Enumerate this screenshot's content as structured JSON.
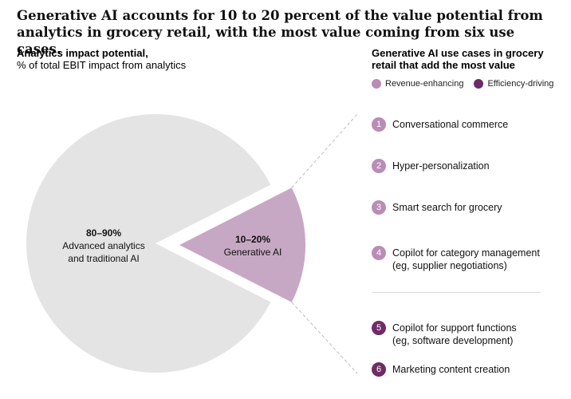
{
  "title": "Generative AI accounts for 10 to 20 percent of the value potential from analytics in grocery retail, with the most value coming from six use cases.",
  "chart_data": {
    "type": "pie",
    "title": "Analytics impact potential,",
    "subtitle": "% of total EBIT impact from analytics",
    "slices": [
      {
        "label": "Advanced analytics and traditional AI",
        "line1": "Advanced analytics",
        "line2": "and traditional AI",
        "value_label": "80–90%",
        "value": 85,
        "color": "#e4e4e4"
      },
      {
        "label": "Generative AI",
        "line1": "Generative AI",
        "line2": "",
        "value_label": "10–20%",
        "value": 15,
        "color": "#c7a8c4",
        "exploded": true
      }
    ]
  },
  "use_cases": {
    "heading": "Generative AI use cases in grocery retail that add the most value",
    "legend": [
      {
        "label": "Revenue-enhancing",
        "color": "#b98db6"
      },
      {
        "label": "Efficiency-driving",
        "color": "#6e2c66"
      }
    ],
    "items": [
      {
        "num": "1",
        "lines": [
          "Conversational commerce"
        ],
        "type": "revenue"
      },
      {
        "num": "2",
        "lines": [
          "Hyper-personalization"
        ],
        "type": "revenue"
      },
      {
        "num": "3",
        "lines": [
          "Smart search for grocery"
        ],
        "type": "revenue"
      },
      {
        "num": "4",
        "lines": [
          "Copilot for category management",
          "(eg, supplier negotiations)"
        ],
        "type": "revenue"
      },
      {
        "num": "5",
        "lines": [
          "Copilot for support functions",
          "(eg, software development)"
        ],
        "type": "efficiency"
      },
      {
        "num": "6",
        "lines": [
          "Marketing content creation"
        ],
        "type": "efficiency"
      }
    ]
  }
}
